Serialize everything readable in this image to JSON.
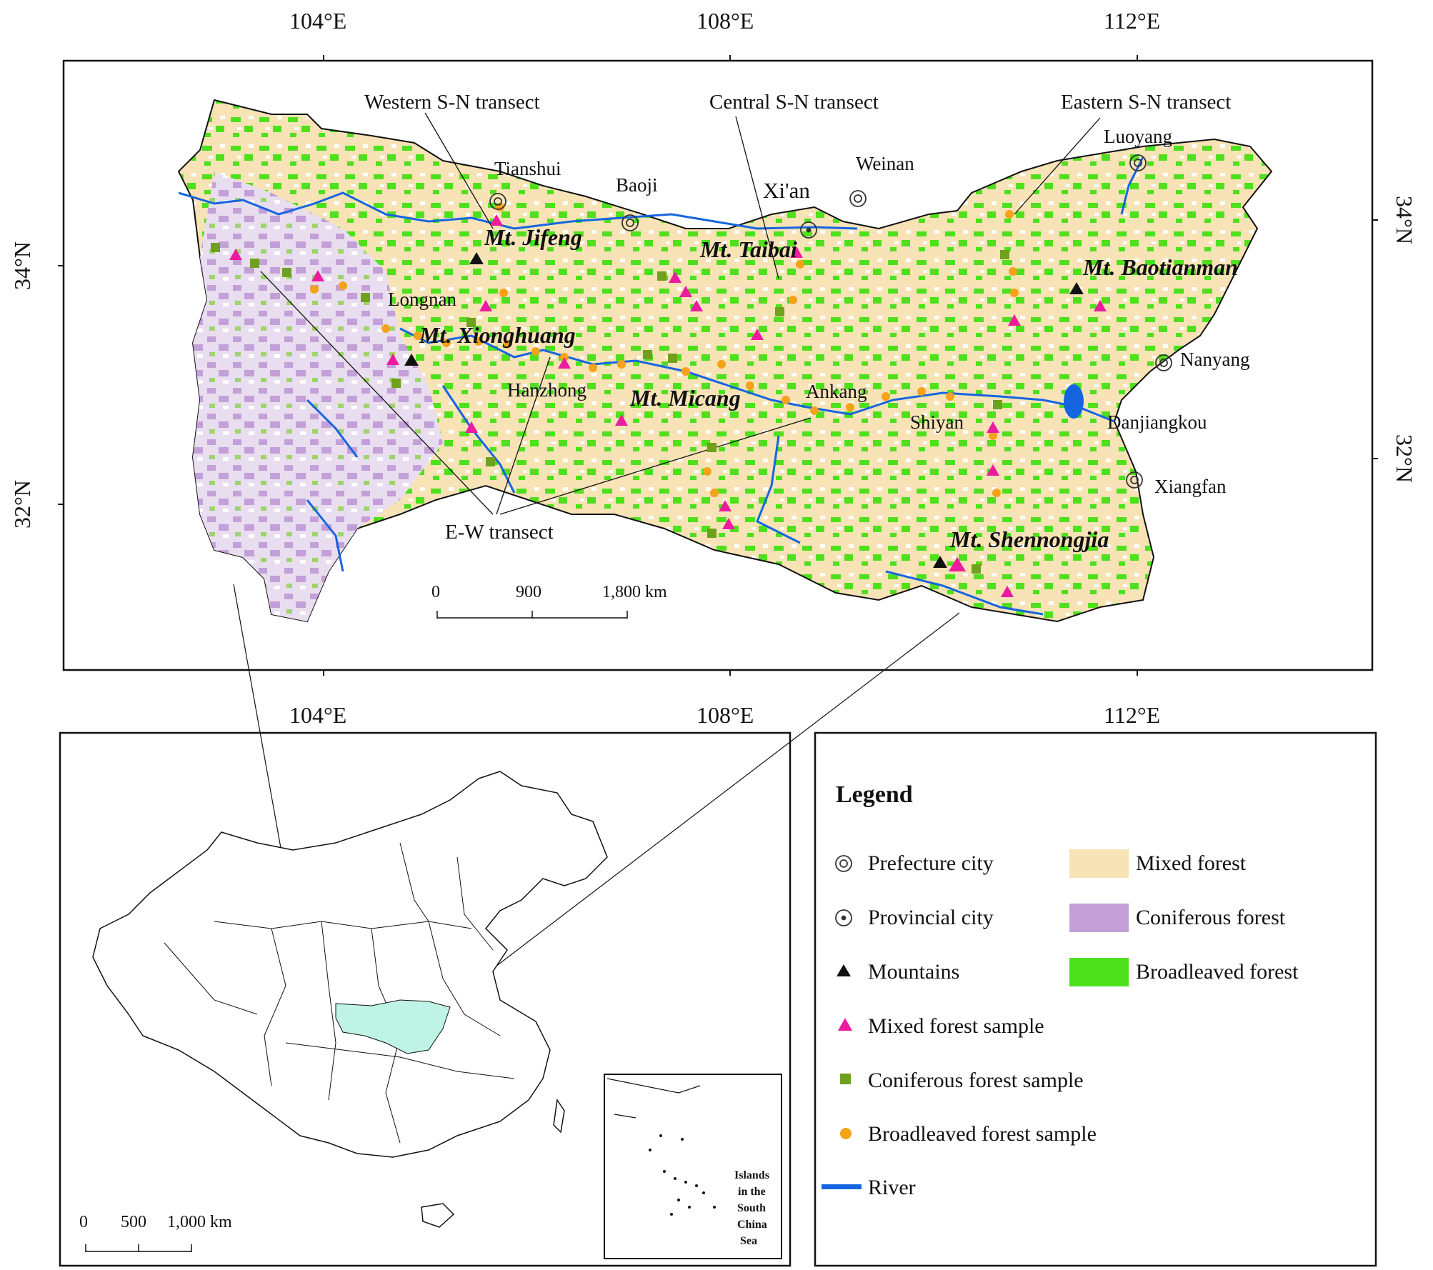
{
  "top_axes": {
    "lon_labels": [
      "104°E",
      "108°E",
      "112°E"
    ],
    "lat_labels": [
      "34°N",
      "32°N"
    ]
  },
  "transects": {
    "western": "Western S-N transect",
    "central": "Central S-N transect",
    "eastern": "Eastern S-N transect",
    "ew": "E-W transect"
  },
  "cities": {
    "tianshui": "Tianshui",
    "baoji": "Baoji",
    "xian": "Xi'an",
    "weinan": "Weinan",
    "luoyang": "Luoyang",
    "longnan": "Longnan",
    "hanzhong": "Hanzhong",
    "ankang": "Ankang",
    "shiyan": "Shiyan",
    "nanyang": "Nanyang",
    "danjiangkou": "Danjiangkou",
    "xiangfan": "Xiangfan"
  },
  "mountains": {
    "jifeng": "Mt. Jifeng",
    "taibai": "Mt. Taibai",
    "baotianman": "Mt. Baotianman",
    "xionghuang": "Mt. Xionghuang",
    "micang": "Mt. Micang",
    "shennongjia": "Mt. Shennongjia"
  },
  "scale_main": {
    "t0": "0",
    "t1": "900",
    "t2": "1,800 km"
  },
  "scale_inset": {
    "t0": "0",
    "t1": "500",
    "t2": "1,000 km"
  },
  "south_china_sea": {
    "l1": "Islands",
    "l2": "in the",
    "l3": "South",
    "l4": "China",
    "l5": "Sea"
  },
  "legend": {
    "title": "Legend",
    "prefecture_city": "Prefecture city",
    "provincial_city": "Provincial city",
    "mountains": "Mountains",
    "mixed_sample": "Mixed forest sample",
    "coniferous_sample": "Coniferous forest sample",
    "broadleaved_sample": "Broadleaved forest sample",
    "river": "River",
    "mixed_forest": "Mixed forest",
    "coniferous_forest": "Coniferous forest",
    "broadleaved_forest": "Broadleaved forest"
  },
  "colors": {
    "mixed_forest": "#f7e3b5",
    "coniferous_forest": "#c3a0d8",
    "broadleaved_forest": "#4ee01c",
    "mixed_sample": "#ec1ba0",
    "coniferous_sample": "#6fa01e",
    "broadleaved_sample": "#f5a21b",
    "river": "#1565e0",
    "highlight_region": "#bff3e6"
  }
}
